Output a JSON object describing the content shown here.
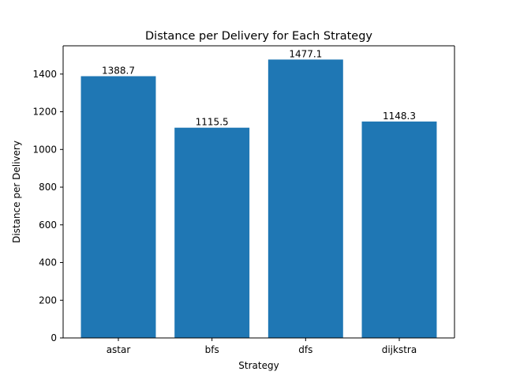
{
  "chart_data": {
    "type": "bar",
    "title": "Distance per Delivery for Each Strategy",
    "xlabel": "Strategy",
    "ylabel": "Distance per Delivery",
    "categories": [
      "astar",
      "bfs",
      "dfs",
      "dijkstra"
    ],
    "values": [
      1388.7,
      1115.5,
      1477.1,
      1148.3
    ],
    "data_labels": [
      "1388.7",
      "1115.5",
      "1477.1",
      "1148.3"
    ],
    "ylim": [
      0,
      1550
    ],
    "yticks": [
      0,
      200,
      400,
      600,
      800,
      1000,
      1200,
      1400
    ],
    "grid": false,
    "legend": "none",
    "bar_color": "#1f77b4"
  }
}
